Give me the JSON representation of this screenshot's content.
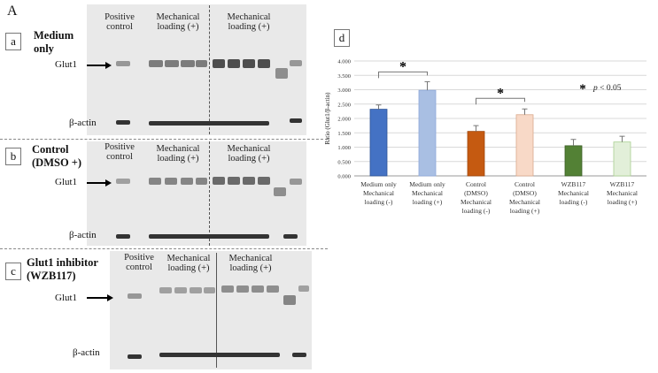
{
  "figure_label": "A",
  "blots": [
    {
      "letter": "a",
      "condition": [
        "Medium",
        "only"
      ],
      "header_positive": [
        "Positive",
        "control"
      ],
      "header_mech": [
        "Mechanical",
        "loading (+)"
      ],
      "header_mech2": [
        "Mechanical",
        "loading (+)"
      ],
      "row1": "Glut1",
      "row2": "β-actin"
    },
    {
      "letter": "b",
      "condition": [
        "Control",
        "(DMSO +)"
      ],
      "header_positive": [
        "Positive",
        "control"
      ],
      "header_mech": [
        "Mechanical",
        "loading (+)"
      ],
      "header_mech2": [
        "Mechanical",
        "loading (+)"
      ],
      "row1": "Glut1",
      "row2": "β-actin"
    },
    {
      "letter": "c",
      "condition": [
        "Glut1 inhibitor",
        "(WZB117)"
      ],
      "header_positive": [
        "Positive",
        "control"
      ],
      "header_mech": [
        "Mechanical",
        "loading (+)"
      ],
      "header_mech2": [
        "Mechanical",
        "loading (+)"
      ],
      "row1": "Glut1",
      "row2": "β-actin"
    }
  ],
  "chart_letter": "d",
  "chart_data": {
    "type": "bar",
    "ylabel": "Ratio (Glut1/β-actin)",
    "ylim": [
      0,
      4.0
    ],
    "yticks": [
      "0.000",
      "0.500",
      "1.000",
      "1.500",
      "2.000",
      "2.500",
      "3.000",
      "3.500",
      "4.000"
    ],
    "grid": true,
    "categories": [
      [
        "Medium only",
        "Mechanical",
        "loading (-)"
      ],
      [
        "Medium only",
        "Mechanical",
        "loading (+)"
      ],
      [
        "Control",
        "(DMSO)",
        "Mechanical",
        "loading (-)"
      ],
      [
        "Control",
        "(DMSO)",
        "Mechanical",
        "loading (+)"
      ],
      [
        "WZB117",
        "Mechanical",
        "loading (-)"
      ],
      [
        "WZB117",
        "Mechanical",
        "loading (+)"
      ]
    ],
    "values": [
      2.32,
      2.98,
      1.55,
      2.13,
      1.05,
      1.18
    ],
    "errors": [
      0.15,
      0.3,
      0.2,
      0.2,
      0.22,
      0.2
    ],
    "colors": [
      "#4472c4",
      "#a9bfe3",
      "#c55a11",
      "#f8d9c7",
      "#538135",
      "#e2efd9"
    ],
    "edge_colors": [
      "#2f5597",
      "#8ea9db",
      "#a0470d",
      "#d9a98c",
      "#3b5d26",
      "#a9cf8f"
    ],
    "significance": [
      {
        "from": 0,
        "to": 1,
        "label": "*"
      },
      {
        "from": 2,
        "to": 3,
        "label": "*"
      }
    ],
    "legend_star": "*",
    "legend_text_prefix": "p",
    "legend_text": " < 0.05"
  }
}
